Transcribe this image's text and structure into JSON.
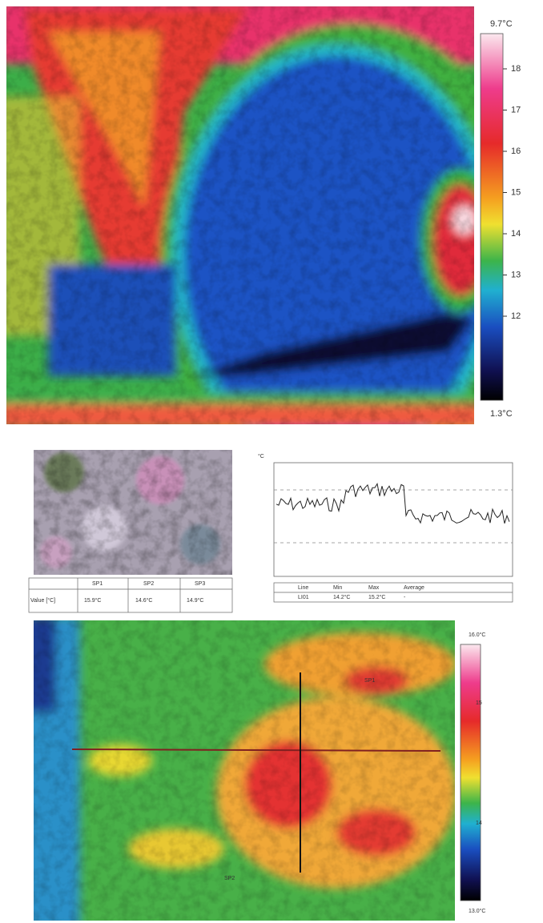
{
  "top_image": {
    "colorbar": {
      "max_label": "9.7°C",
      "min_label": "1.3°C",
      "ticks": [
        "18",
        "17",
        "16",
        "15",
        "14",
        "13",
        "12"
      ]
    }
  },
  "bottom_panel": {
    "table": {
      "header": [
        "SP1",
        "SP2",
        "SP3"
      ],
      "row_label": "Value [°C]",
      "row": [
        "15.9°C",
        "14.6°C",
        "14.9°C"
      ]
    },
    "profile": {
      "unit": "°C",
      "stats_header": [
        "Line",
        "Min",
        "Max",
        "Average"
      ],
      "stats_row": [
        "LI01",
        "14.2°C",
        "15.2°C",
        "-"
      ]
    },
    "thermal": {
      "spots": [
        "SP1",
        "SP2"
      ],
      "colorbar": {
        "max_label": "16.0°C",
        "min_label": "13.0°C",
        "ticks": [
          "15",
          "14"
        ]
      }
    }
  }
}
